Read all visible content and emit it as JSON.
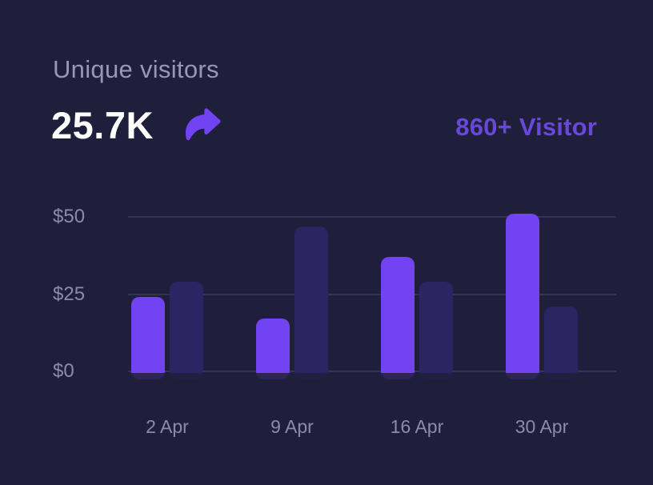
{
  "header": {
    "title": "Unique visitors",
    "stat_value": "25.7K",
    "stat_icon": "share-arrow-icon",
    "visitors_link": "860+ Visitor"
  },
  "colors": {
    "background": "#201f3b",
    "title_text": "#9698b6",
    "stat_text": "#ffffff",
    "accent_purple": "#7243f2",
    "dark_purple": "#2c2563",
    "link_purple": "#6848d8",
    "axis_text": "#8a8ca9",
    "gridline": "rgba(160,165,210,0.16)"
  },
  "chart_data": {
    "type": "bar",
    "title": "Unique visitors",
    "categories": [
      "2 Apr",
      "9 Apr",
      "16 Apr",
      "30 Apr"
    ],
    "series": [
      {
        "name": "series-1",
        "color_key": "accent_purple",
        "values": [
          24,
          17,
          37,
          51
        ]
      },
      {
        "name": "series-2",
        "color_key": "dark_purple",
        "values": [
          29,
          47,
          29,
          21
        ]
      }
    ],
    "yticks": [
      {
        "label": "$0",
        "value": 0
      },
      {
        "label": "$25",
        "value": 25
      },
      {
        "label": "$50",
        "value": 50
      }
    ],
    "ylim": [
      0,
      50
    ],
    "currency_prefix": "$",
    "grid": "horizontal",
    "legend": "none"
  }
}
